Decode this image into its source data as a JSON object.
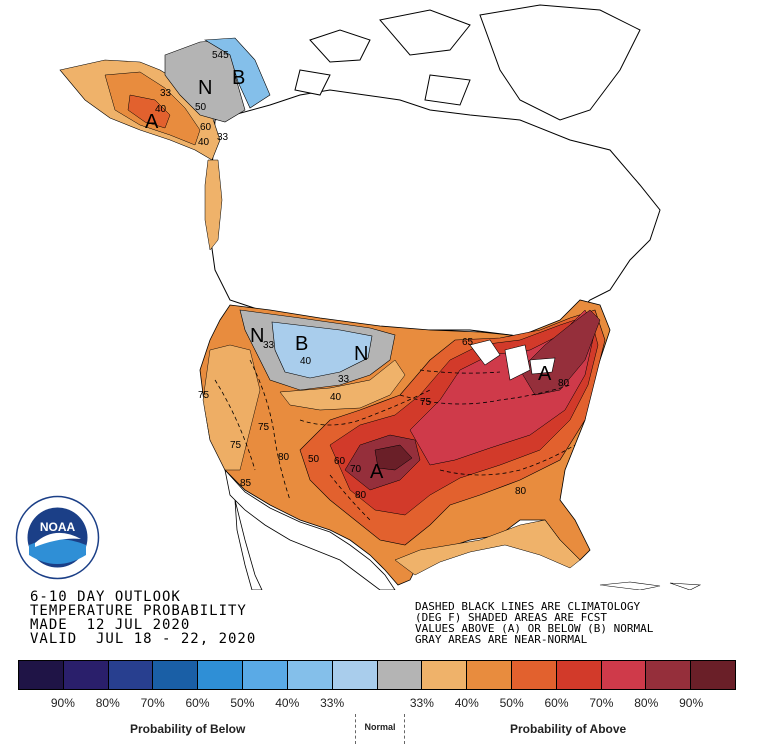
{
  "map": {
    "title_lines": [
      "6-10 DAY OUTLOOK",
      "TEMPERATURE PROBABILITY",
      "MADE  12 JUL 2020",
      "VALID  JUL 18 - 22, 2020"
    ],
    "notes_lines": [
      "DASHED BLACK LINES ARE CLIMATOLOGY",
      "(DEG F) SHADED AREAS ARE FCST",
      "VALUES ABOVE (A) OR BELOW (B) NORMAL",
      "GRAY AREAS ARE NEAR-NORMAL"
    ],
    "region_labels": {
      "alaska_normal": "N",
      "alaska_below": "B",
      "alaska_above": "A",
      "north_normal_west": "N",
      "north_below": "B",
      "north_normal_east": "N",
      "plains_above": "A",
      "east_above": "A"
    },
    "contour_labels": {
      "ak_33": "33",
      "ak_40": "40",
      "ak_50": "50",
      "ak_60": "60",
      "ak_40b": "40",
      "ak_33b": "33",
      "ak_545": "545",
      "nw_33": "33",
      "nw_40": "40",
      "ne_33": "33",
      "ne_40": "40",
      "w_75": "75",
      "sw_75": "75",
      "se_75": "75",
      "c_80": "80",
      "c_50": "50",
      "c_60": "60",
      "c_70": "70",
      "plains_80": "80",
      "se_80": "80",
      "east_80": "80",
      "ne_65": "65",
      "mid_75": "75",
      "sw_85": "85"
    },
    "logo_text": "NOAA"
  },
  "legend": {
    "colors": [
      "#1f1446",
      "#2a1f6b",
      "#283f8f",
      "#1a5fa6",
      "#2f8fd6",
      "#5aaae6",
      "#84bfea",
      "#a9cdec",
      "#b4b4b4",
      "#efb26a",
      "#e88c3e",
      "#e2612e",
      "#d23a2a",
      "#cf3a4a",
      "#952f3b",
      "#6a1f28"
    ],
    "tick_labels": [
      "90%",
      "80%",
      "70%",
      "60%",
      "50%",
      "40%",
      "33%",
      "33%",
      "40%",
      "50%",
      "60%",
      "70%",
      "80%",
      "90%"
    ],
    "below_caption": "Probability of Below",
    "normal_caption": "Normal",
    "above_caption": "Probability of Above"
  },
  "colors": {
    "below_33": "#a9cdec",
    "below_40": "#84bfea",
    "near_normal": "#b4b4b4",
    "above_33": "#efb26a",
    "above_40": "#e88c3e",
    "above_50": "#e2612e",
    "above_60": "#d23a2a",
    "above_70": "#cf3a4a",
    "above_80": "#952f3b",
    "above_90": "#6a1f28"
  }
}
